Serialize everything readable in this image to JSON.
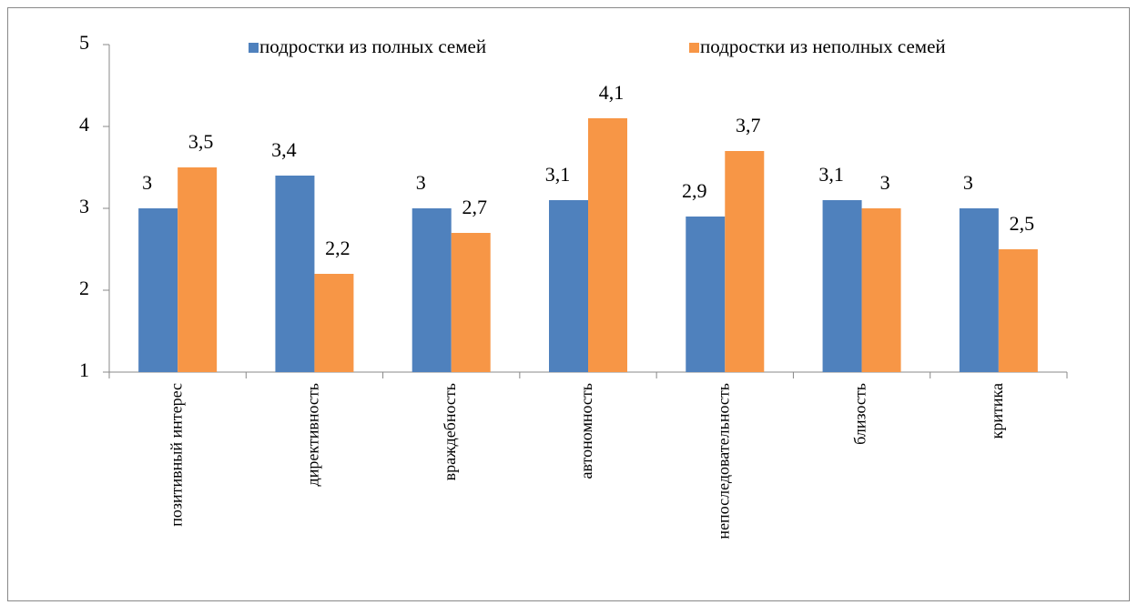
{
  "chart_data": {
    "type": "bar",
    "categories": [
      "позитивный интерес",
      "директивность",
      "враждебность",
      "автономность",
      "непоследовательность",
      "близость",
      "критика"
    ],
    "series": [
      {
        "name": "подростки из полных семей",
        "color": "#4f81bd",
        "values": [
          3,
          3.4,
          3,
          3.1,
          2.9,
          3.1,
          3
        ],
        "value_labels": [
          "3",
          "3,4",
          "3",
          "3,1",
          "2,9",
          "3,1",
          "3"
        ]
      },
      {
        "name": "подростки из неполных семей",
        "color": "#f79646",
        "values": [
          3.5,
          2.2,
          2.7,
          4.1,
          3.7,
          3,
          2.5
        ],
        "value_labels": [
          "3,5",
          "2,2",
          "2,7",
          "4,1",
          "3,7",
          "3",
          "2,5"
        ]
      }
    ],
    "ylim": [
      1,
      5
    ],
    "yticks": [
      1,
      2,
      3,
      4,
      5
    ],
    "legend": "top"
  }
}
